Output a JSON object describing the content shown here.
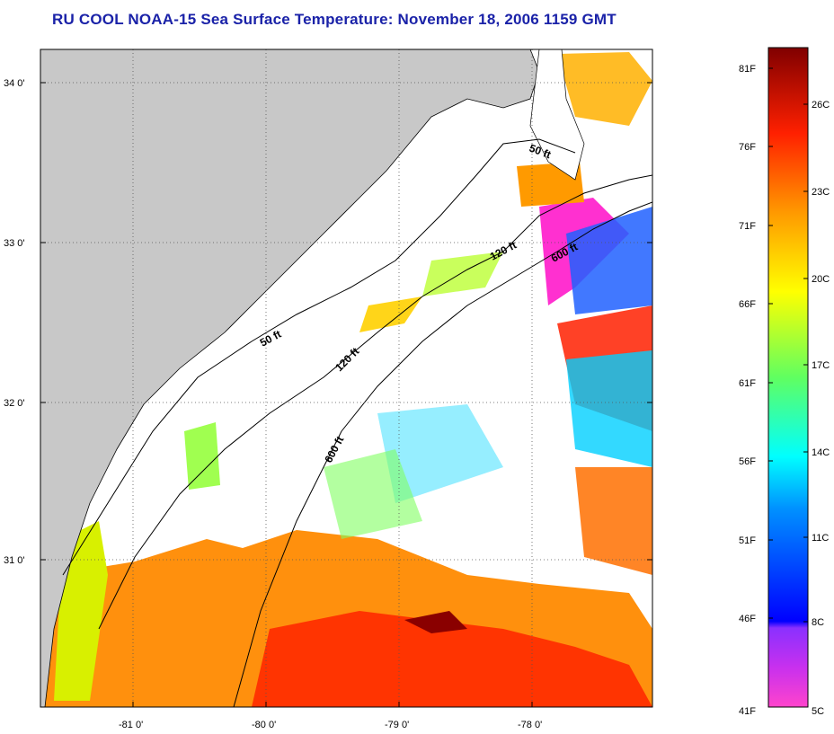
{
  "title": "RU COOL  NOAA-15  Sea Surface Temperature:  November 18, 2006 1159 GMT",
  "map": {
    "lon_ticks": [
      "-81 0'",
      "-80 0'",
      "-79 0'",
      "-78 0'"
    ],
    "lat_ticks": [
      "34 0'",
      "33 0'",
      "32 0'",
      "31 0'"
    ],
    "contour_labels": [
      "50 ft",
      "50 ft",
      "120 ft",
      "120 ft",
      "600 ft",
      "600 ft"
    ],
    "colors": {
      "land": "#c8c8c8",
      "ocean_masked": "#ffffff",
      "grid": "#555555"
    }
  },
  "colorbar": {
    "fahrenheit_labels": [
      "81F",
      "76F",
      "71F",
      "66F",
      "61F",
      "56F",
      "51F",
      "46F",
      "41F"
    ],
    "celsius_labels": [
      "26C",
      "23C",
      "20C",
      "17C",
      "14C",
      "11C",
      "8C",
      "5C"
    ],
    "colors": [
      "#ff44cc",
      "#b026ff",
      "#0000ff",
      "#00a0ff",
      "#00ffff",
      "#7cff40",
      "#ffff00",
      "#ff8000",
      "#ff0000",
      "#800000"
    ]
  }
}
